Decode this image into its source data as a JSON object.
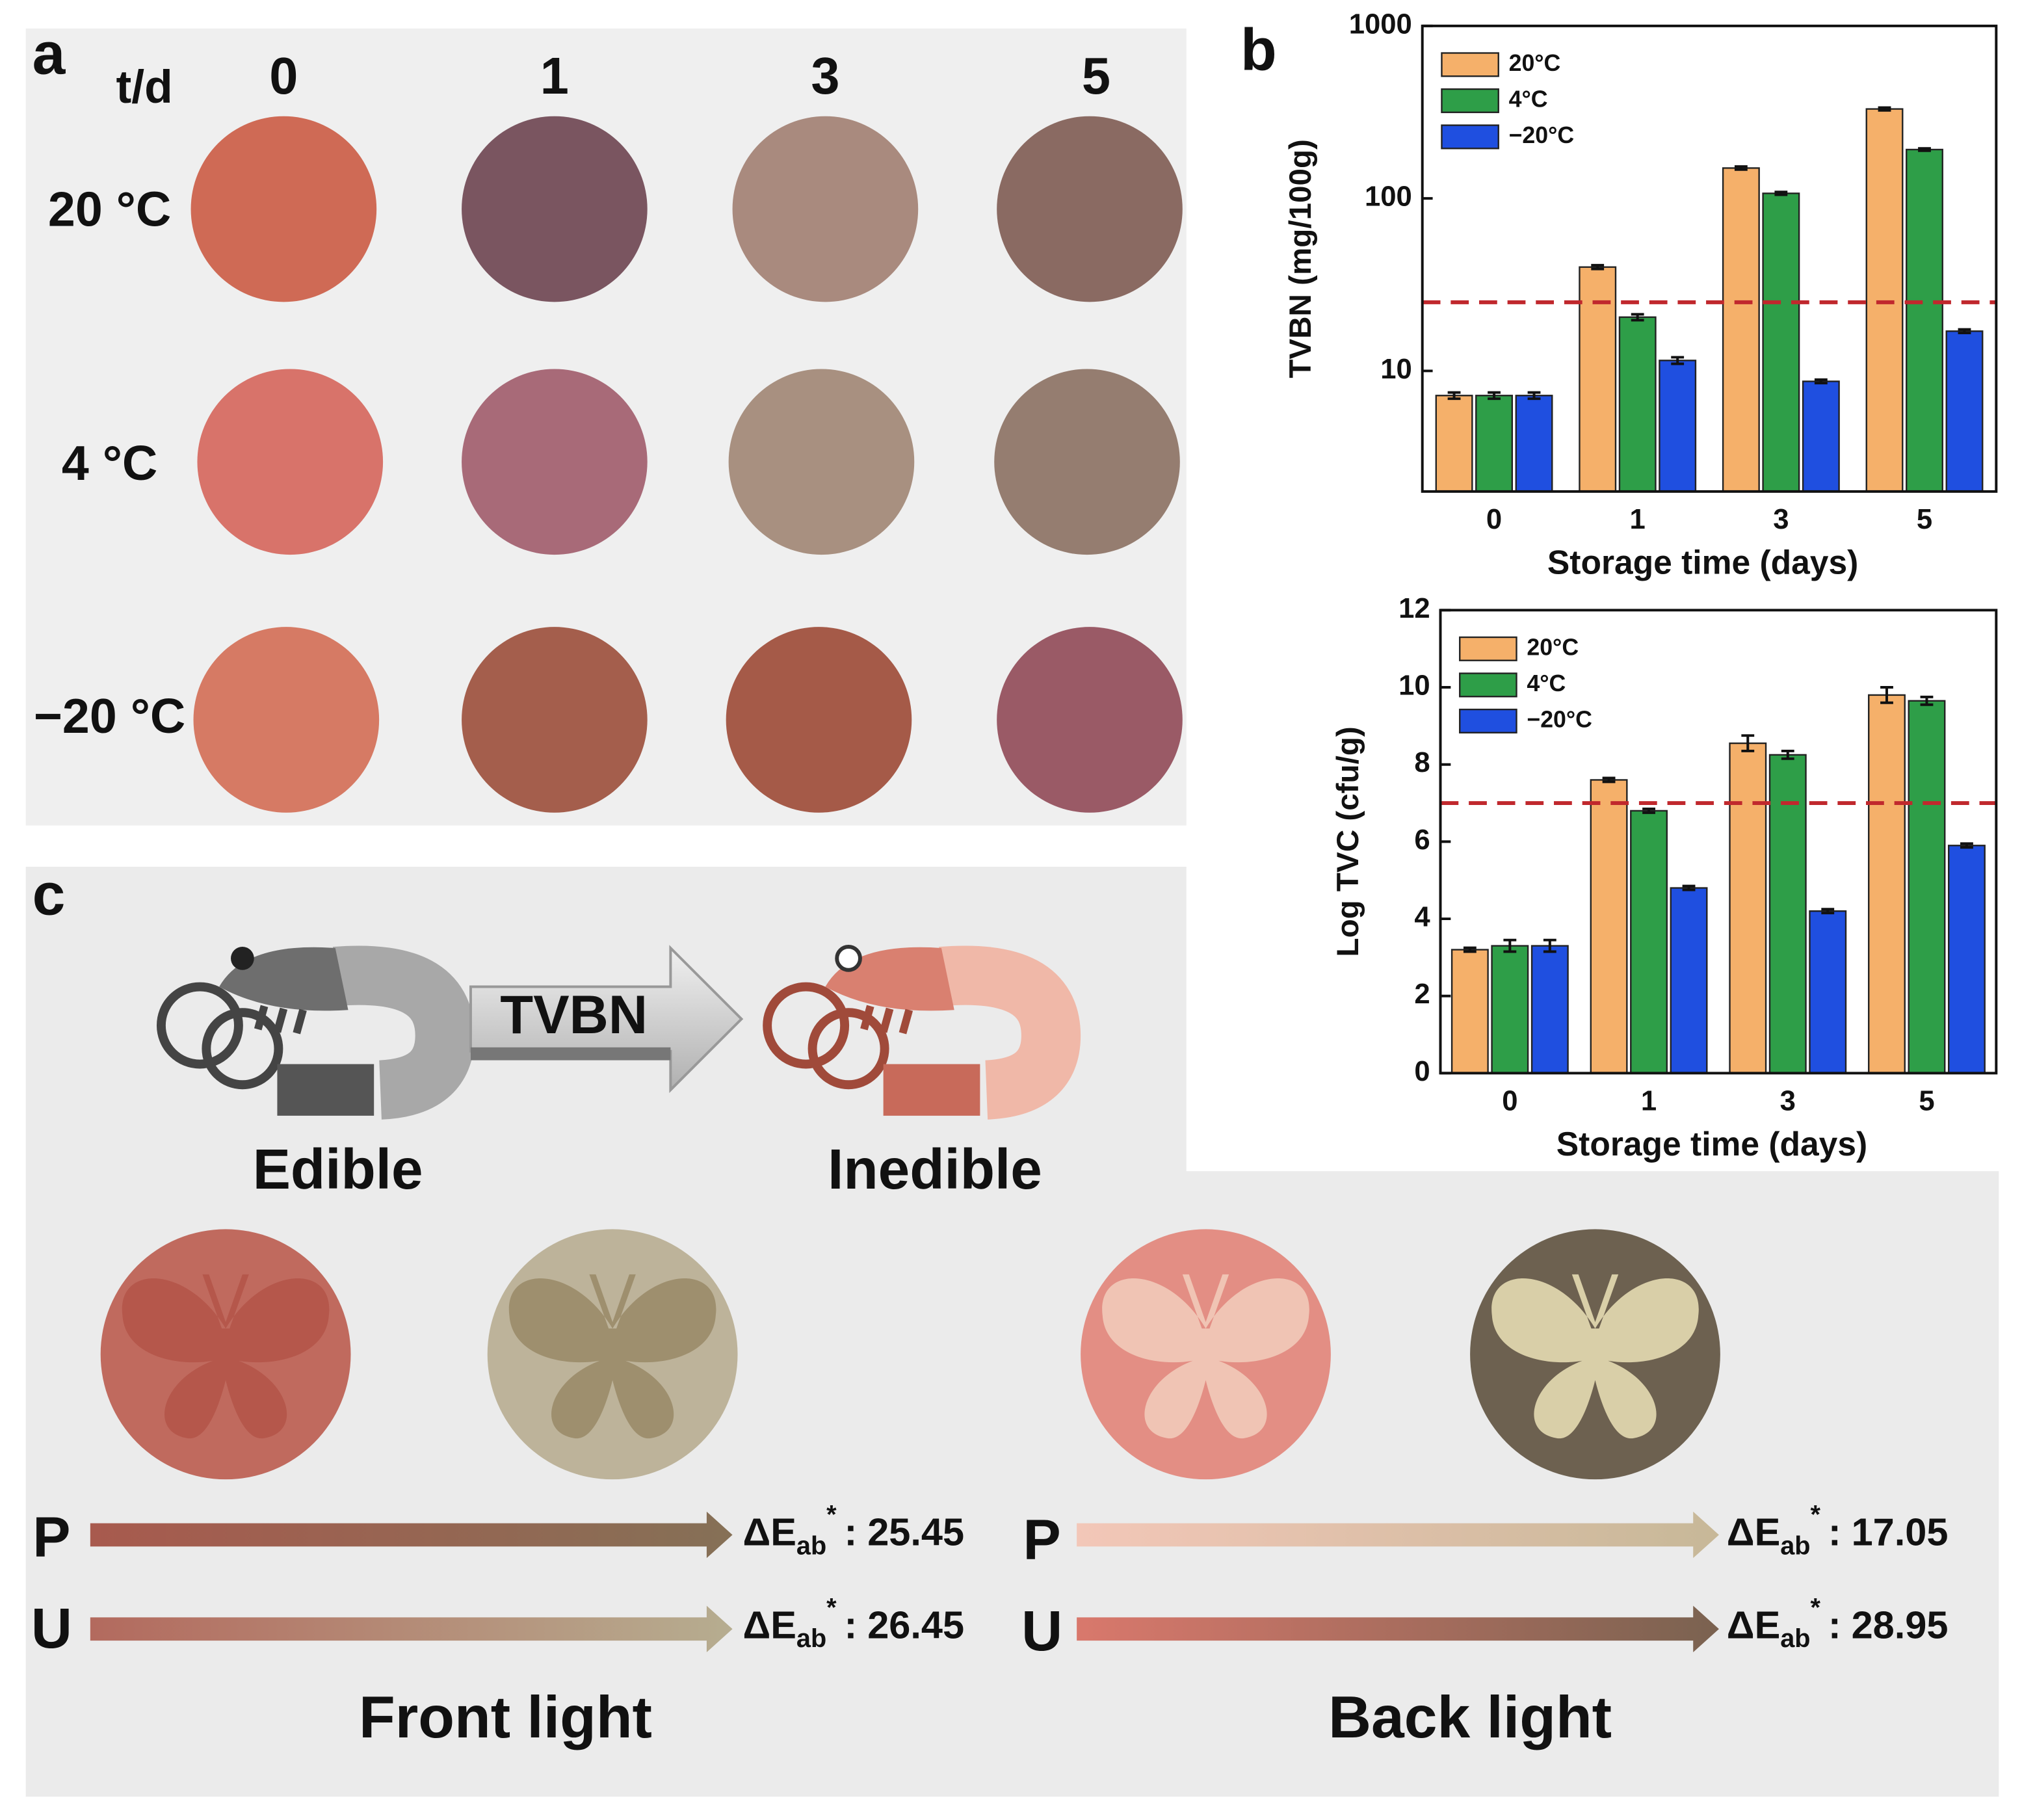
{
  "panel_a": {
    "label": "a",
    "corner": "t/d",
    "columns": [
      "0",
      "1",
      "3",
      "5"
    ],
    "rows": [
      "20 °C",
      "4 °C",
      "−20 °C"
    ]
  },
  "panel_b": {
    "label": "b"
  },
  "chart_data": [
    {
      "type": "bar",
      "categories": [
        "0",
        "1",
        "3",
        "5"
      ],
      "x_label": "Storage time (days)",
      "y_label": "TVBN (mg/100g)",
      "log_scale": true,
      "ylim": [
        2,
        1000
      ],
      "yticks": [
        10,
        100,
        1000
      ],
      "legend": "upper left",
      "threshold": 25,
      "threshold_color": "#c0282d",
      "series": [
        {
          "name": "20°C",
          "color": "#f5b06a",
          "values": [
            7.2,
            40,
            150,
            330
          ],
          "errors": [
            0.3,
            1,
            3,
            6
          ]
        },
        {
          "name": "4°C",
          "color": "#2e9e48",
          "values": [
            7.2,
            20.5,
            107,
            192
          ],
          "errors": [
            0.3,
            0.8,
            2,
            3
          ]
        },
        {
          "name": "−20°C",
          "color": "#1f4fe0",
          "values": [
            7.2,
            11.5,
            8.7,
            17
          ],
          "errors": [
            0.3,
            0.5,
            0.2,
            0.4
          ]
        }
      ]
    },
    {
      "type": "bar",
      "categories": [
        "0",
        "1",
        "3",
        "5"
      ],
      "x_label": "Storage time (days)",
      "y_label": "Log TVC (cfu/g)",
      "log_scale": false,
      "ylim": [
        0,
        12
      ],
      "yticks": [
        0,
        2,
        4,
        6,
        8,
        10,
        12
      ],
      "legend": "upper left",
      "threshold": 7,
      "threshold_color": "#c0282d",
      "series": [
        {
          "name": "20°C",
          "color": "#f5b06a",
          "values": [
            3.2,
            7.6,
            8.55,
            9.8
          ],
          "errors": [
            0.05,
            0.05,
            0.2,
            0.2
          ]
        },
        {
          "name": "4°C",
          "color": "#2e9e48",
          "values": [
            3.3,
            6.8,
            8.25,
            9.65
          ],
          "errors": [
            0.15,
            0.05,
            0.1,
            0.1
          ]
        },
        {
          "name": "−20°C",
          "color": "#1f4fe0",
          "values": [
            3.3,
            4.8,
            4.2,
            5.9
          ],
          "errors": [
            0.15,
            0.05,
            0.05,
            0.05
          ]
        }
      ]
    }
  ],
  "panel_c": {
    "label": "c",
    "arrow_label": "TVBN",
    "states": [
      "Edible",
      "Inedible"
    ],
    "separator": ":",
    "groups": [
      {
        "title": "Front light",
        "rows": [
          {
            "name": "P",
            "symbol": "ΔE",
            "sub": "ab",
            "sup": "*",
            "value": 25.45
          },
          {
            "name": "U",
            "symbol": "ΔE",
            "sub": "ab",
            "sup": "*",
            "value": 26.45
          }
        ]
      },
      {
        "title": "Back light",
        "rows": [
          {
            "name": "P",
            "symbol": "ΔE",
            "sub": "ab",
            "sup": "*",
            "value": 17.05
          },
          {
            "name": "U",
            "symbol": "ΔE",
            "sub": "ab",
            "sup": "*",
            "value": 28.95
          }
        ]
      }
    ]
  }
}
